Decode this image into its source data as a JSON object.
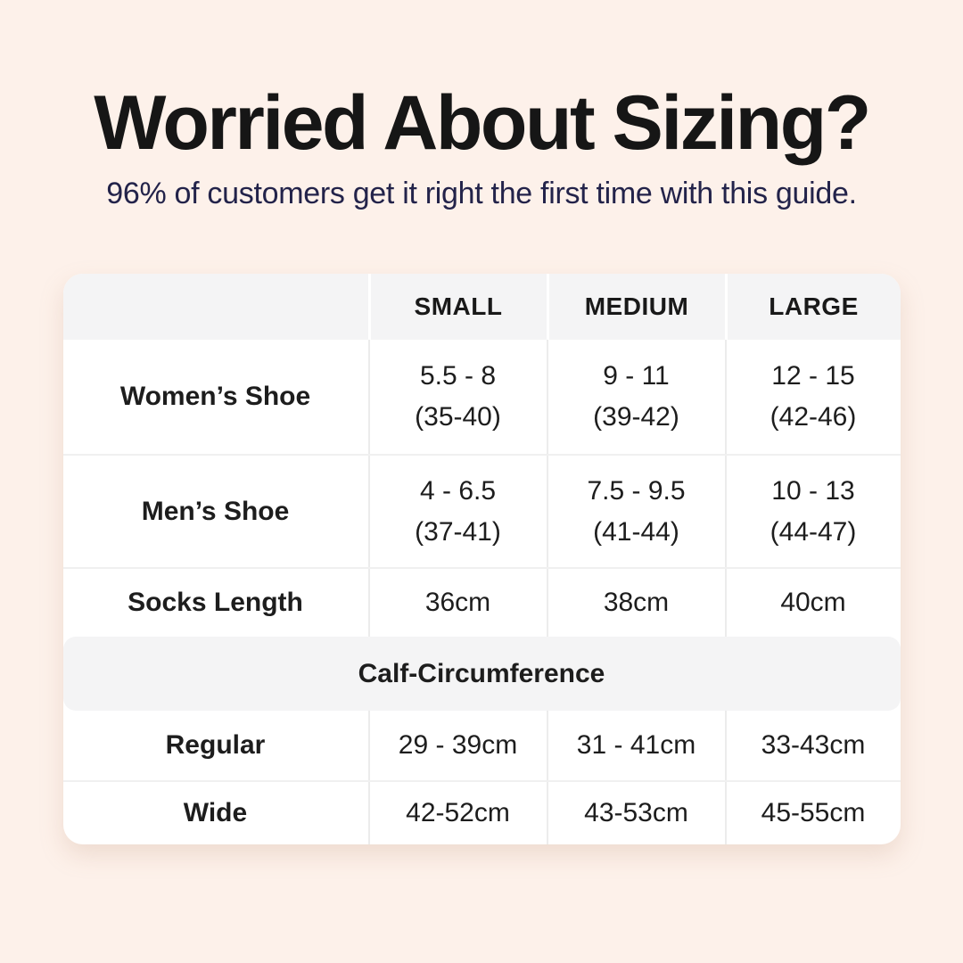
{
  "page": {
    "background_color": "#fdf1ea",
    "card_color": "#ffffff",
    "header_row_color": "#f4f4f5",
    "section_band_color": "#f4f4f5",
    "divider_color": "#ececec",
    "title_color": "#161616",
    "subtitle_color": "#23234a",
    "text_color": "#1d1d1d"
  },
  "chart_data": {
    "type": "table",
    "title": "Worried About Sizing?",
    "subtitle": "96% of customers get it right the first time with this guide.",
    "columns": [
      "",
      "SMALL",
      "MEDIUM",
      "LARGE"
    ],
    "rows": [
      [
        "Women’s Shoe",
        "5.5 - 8\n(35-40)",
        "9 - 11\n(39-42)",
        "12 - 15\n(42-46)"
      ],
      [
        "Men’s Shoe",
        "4 - 6.5\n(37-41)",
        "7.5 - 9.5\n(41-44)",
        "10 - 13\n(44-47)"
      ],
      [
        "Socks Length",
        "36cm",
        "38cm",
        "40cm"
      ]
    ],
    "section": {
      "header": "Calf-Circumference",
      "rows": [
        [
          "Regular",
          "29 - 39cm",
          "31 - 41cm",
          "33-43cm"
        ],
        [
          "Wide",
          "42-52cm",
          "43-53cm",
          "45-55cm"
        ]
      ]
    },
    "layout": {
      "legend": "none",
      "grid": "light-dividers",
      "header_position": "top-row"
    }
  }
}
